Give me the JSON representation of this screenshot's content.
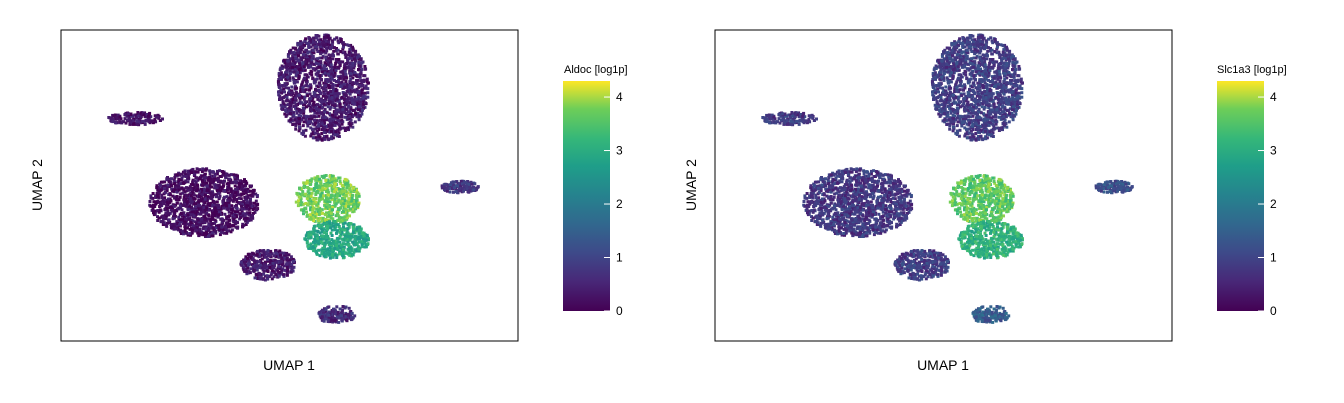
{
  "chart_data": [
    {
      "type": "scatter",
      "xlabel": "UMAP 1",
      "ylabel": "UMAP 2",
      "colorbar": {
        "title": "Aldoc [log1p]",
        "ticks": [
          "0",
          "1",
          "2",
          "3",
          "4"
        ],
        "range": [
          0,
          4.3
        ],
        "colormap": "viridis"
      },
      "clusters": [
        {
          "cx": 0.57,
          "cy": 0.82,
          "rx": 0.1,
          "ry": 0.17,
          "value": 0.35
        },
        {
          "cx": 0.31,
          "cy": 0.45,
          "rx": 0.12,
          "ry": 0.11,
          "value": 0.15
        },
        {
          "cx": 0.58,
          "cy": 0.46,
          "rx": 0.07,
          "ry": 0.08,
          "value": 3.7
        },
        {
          "cx": 0.6,
          "cy": 0.33,
          "rx": 0.07,
          "ry": 0.06,
          "value": 2.9
        },
        {
          "cx": 0.45,
          "cy": 0.25,
          "rx": 0.06,
          "ry": 0.05,
          "value": 0.35
        },
        {
          "cx": 0.6,
          "cy": 0.09,
          "rx": 0.04,
          "ry": 0.03,
          "value": 0.6
        },
        {
          "cx": 0.87,
          "cy": 0.5,
          "rx": 0.04,
          "ry": 0.02,
          "value": 0.8
        },
        {
          "cx": 0.16,
          "cy": 0.72,
          "rx": 0.06,
          "ry": 0.02,
          "value": 0.2
        }
      ]
    },
    {
      "type": "scatter",
      "xlabel": "UMAP 1",
      "ylabel": "UMAP 2",
      "colorbar": {
        "title": "Slc1a3 [log1p]",
        "ticks": [
          "0",
          "1",
          "2",
          "3",
          "4"
        ],
        "range": [
          0,
          4.3
        ],
        "colormap": "viridis"
      },
      "clusters": [
        {
          "cx": 0.57,
          "cy": 0.82,
          "rx": 0.1,
          "ry": 0.17,
          "value": 0.9
        },
        {
          "cx": 0.31,
          "cy": 0.45,
          "rx": 0.12,
          "ry": 0.11,
          "value": 0.8
        },
        {
          "cx": 0.58,
          "cy": 0.46,
          "rx": 0.07,
          "ry": 0.08,
          "value": 3.6
        },
        {
          "cx": 0.6,
          "cy": 0.33,
          "rx": 0.07,
          "ry": 0.06,
          "value": 3.1
        },
        {
          "cx": 0.45,
          "cy": 0.25,
          "rx": 0.06,
          "ry": 0.05,
          "value": 0.9
        },
        {
          "cx": 0.6,
          "cy": 0.09,
          "rx": 0.04,
          "ry": 0.03,
          "value": 1.4
        },
        {
          "cx": 0.87,
          "cy": 0.5,
          "rx": 0.04,
          "ry": 0.02,
          "value": 1.2
        },
        {
          "cx": 0.16,
          "cy": 0.72,
          "rx": 0.06,
          "ry": 0.02,
          "value": 0.8
        }
      ]
    }
  ]
}
